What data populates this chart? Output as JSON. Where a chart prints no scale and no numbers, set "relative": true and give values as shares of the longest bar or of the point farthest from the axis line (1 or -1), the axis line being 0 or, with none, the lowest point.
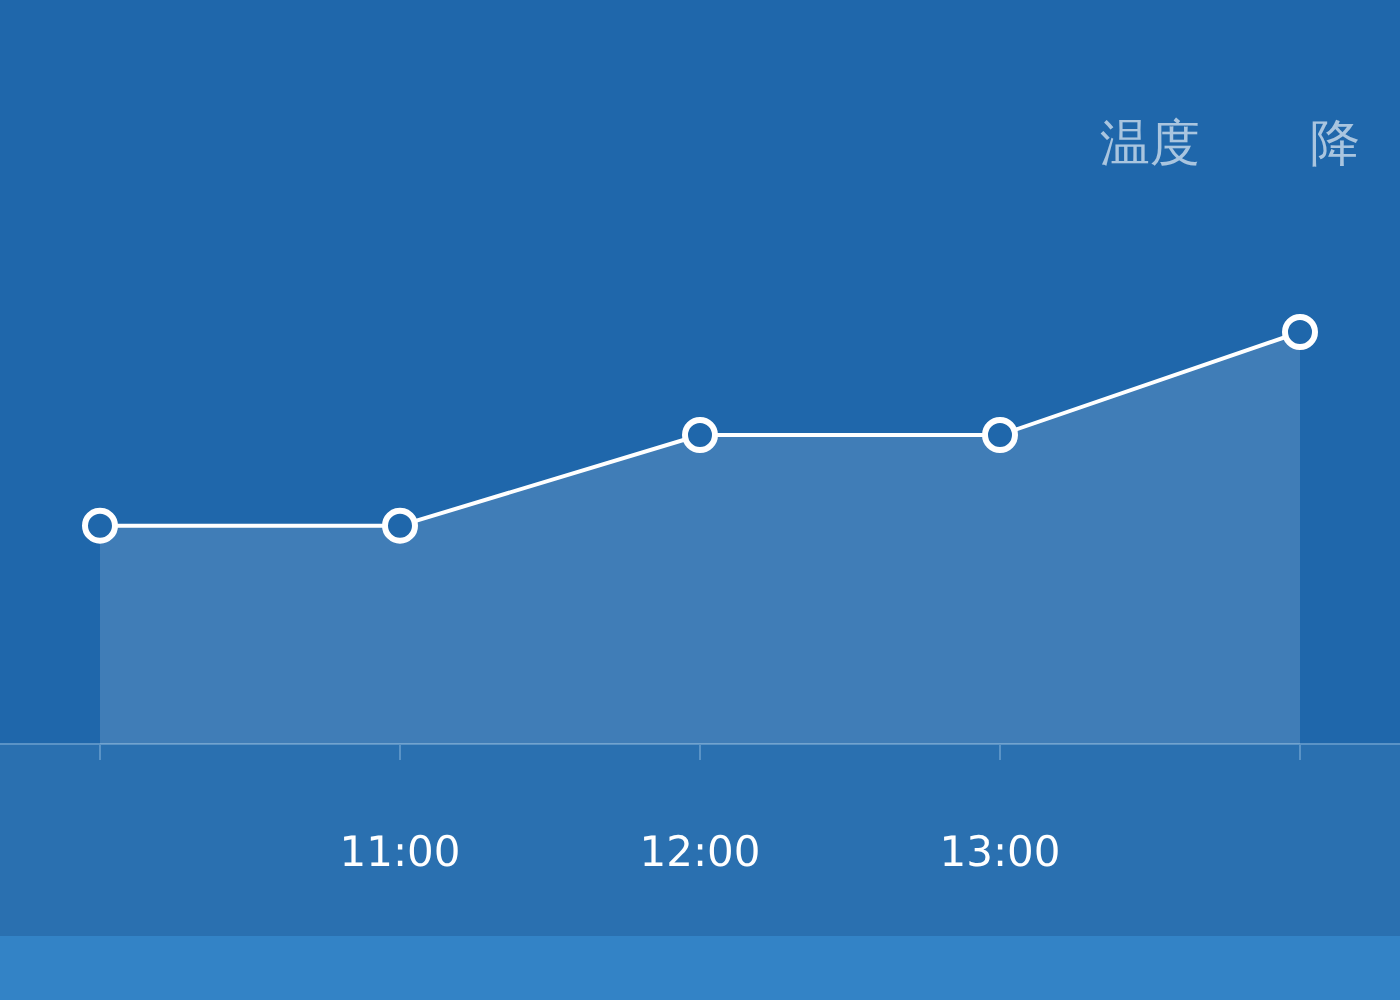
{
  "chart_data": {
    "type": "area",
    "relative": true,
    "categories": [
      null,
      "11:00",
      "12:00",
      "13:00",
      null
    ],
    "marker": "circle",
    "legend": "top right",
    "series": [
      {
        "name": "温度",
        "color": "#ffffff",
        "values": [
          0.53,
          0.53,
          0.75,
          0.75,
          1
        ]
      },
      {
        "name": "降",
        "color": "#ffffff",
        "values": [
          null,
          null,
          null,
          null,
          null
        ]
      }
    ]
  }
}
